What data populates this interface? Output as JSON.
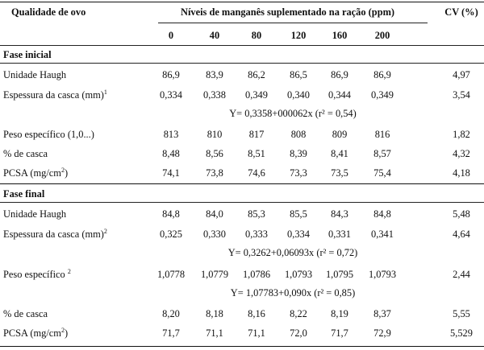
{
  "header": {
    "quality_label": "Qualidade de ovo",
    "levels_label": "Níveis de manganês suplementado na ração (ppm)",
    "cv_label": "CV (%)",
    "levels": [
      "0",
      "40",
      "80",
      "120",
      "160",
      "200"
    ]
  },
  "sections": [
    {
      "title": "Fase inicial",
      "rows": [
        {
          "label": "Unidade Haugh",
          "sup": "",
          "values": [
            "86,9",
            "83,9",
            "86,2",
            "86,5",
            "86,9",
            "86,9"
          ],
          "cv": "4,97"
        },
        {
          "label": "Espessura da casca (mm)",
          "sup": "1",
          "values": [
            "0,334",
            "0,338",
            "0,349",
            "0,340",
            "0,344",
            "0,349"
          ],
          "cv": "3,54"
        },
        {
          "label": "Peso específico (1,0...)",
          "sup": "",
          "values": [
            "813",
            "810",
            "817",
            "808",
            "809",
            "816"
          ],
          "cv": "1,82"
        },
        {
          "label": "% de casca",
          "sup": "",
          "values": [
            "8,48",
            "8,56",
            "8,51",
            "8,39",
            "8,41",
            "8,57"
          ],
          "cv": "4,32"
        },
        {
          "label": "PCSA (mg/cm",
          "sup": "2",
          "label_end": ")",
          "values": [
            "74,1",
            "73,8",
            "74,6",
            "73,3",
            "73,5",
            "75,4"
          ],
          "cv": "4,18"
        }
      ],
      "equations": [
        "Y= 0,3358+000062x  (r² = 0,54)"
      ]
    },
    {
      "title": "Fase final",
      "rows": [
        {
          "label": "Unidade Haugh",
          "sup": "",
          "values": [
            "84,8",
            "84,0",
            "85,3",
            "85,5",
            "84,3",
            "84,8"
          ],
          "cv": "5,48"
        },
        {
          "label": "Espessura da casca (mm)",
          "sup": "2",
          "values": [
            "0,325",
            "0,330",
            "0,333",
            "0,334",
            "0,331",
            "0,341"
          ],
          "cv": "4,64"
        },
        {
          "label": "Peso específico ",
          "sup": "2",
          "values": [
            "1,0778",
            "1,0779",
            "1,0786",
            "1,0793",
            "1,0795",
            "1,0793"
          ],
          "cv": "2,44"
        },
        {
          "label": "% de casca",
          "sup": "",
          "values": [
            "8,20",
            "8,18",
            "8,16",
            "8,22",
            "8,19",
            "8,37"
          ],
          "cv": "5,55"
        },
        {
          "label": "PCSA (mg/cm",
          "sup": "2",
          "label_end": ")",
          "values": [
            "71,7",
            "71,1",
            "71,1",
            "72,0",
            "71,7",
            "72,9"
          ],
          "cv": "5,529"
        }
      ],
      "equations": [
        "Y= 0,3262+0,06093x  (r² = 0,72)",
        "Y= 1,07783+0,090x  (r² = 0,85)"
      ]
    }
  ]
}
